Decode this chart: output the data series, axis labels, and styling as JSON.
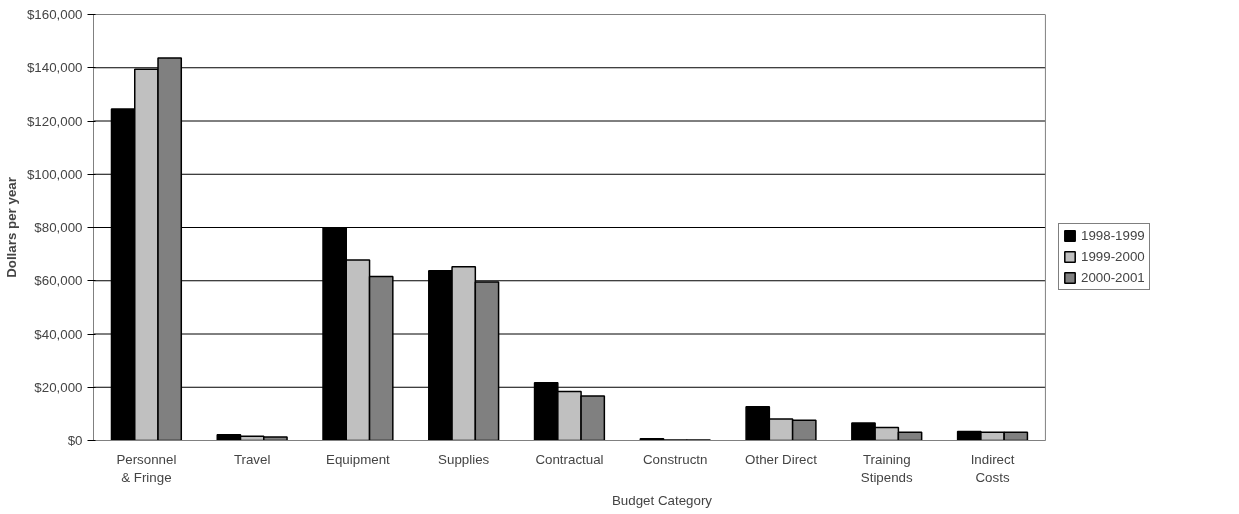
{
  "chart_data": {
    "type": "bar",
    "xlabel": "Budget Category",
    "ylabel": "Dollars per year",
    "categories": [
      "Personnel\n& Fringe",
      "Travel",
      "Equipment",
      "Supplies",
      "Contractual",
      "Constructn",
      "Other Direct",
      "Training\nStipends",
      "Indirect\nCosts"
    ],
    "series": [
      {
        "name": "1998-1999",
        "color": "#000000",
        "values": [
          124500,
          2200,
          79800,
          63800,
          21700,
          700,
          12700,
          6600,
          3400
        ]
      },
      {
        "name": "1999-2000",
        "color": "#c0c0c0",
        "values": [
          139400,
          1600,
          67800,
          65300,
          18400,
          200,
          8100,
          4900,
          3100
        ]
      },
      {
        "name": "2000-2001",
        "color": "#808080",
        "values": [
          143700,
          1300,
          61600,
          59500,
          16700,
          200,
          7600,
          3100,
          3100
        ]
      }
    ],
    "ylim": [
      0,
      160000
    ],
    "yticks": [
      {
        "value": 0,
        "label": "$0"
      },
      {
        "value": 20000,
        "label": "$20,000"
      },
      {
        "value": 40000,
        "label": "$40,000"
      },
      {
        "value": 60000,
        "label": "$60,000"
      },
      {
        "value": 80000,
        "label": "$80,000"
      },
      {
        "value": 100000,
        "label": "$100,000"
      },
      {
        "value": 120000,
        "label": "$120,000"
      },
      {
        "value": 140000,
        "label": "$140,000"
      },
      {
        "value": 160000,
        "label": "$160,000"
      }
    ],
    "grid": "y",
    "legend": "right"
  }
}
